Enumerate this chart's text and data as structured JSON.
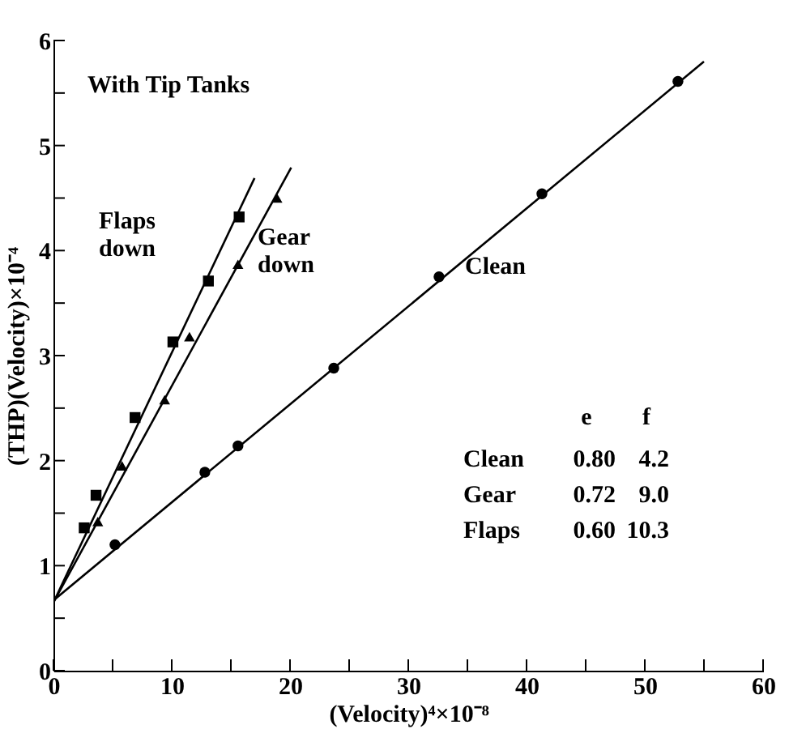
{
  "chart_data": {
    "type": "scatter",
    "xlabel": "(Velocity)⁴×10⁻⁸",
    "ylabel": "(THP)(Velocity)×10⁻⁴",
    "xlim": [
      0,
      60
    ],
    "ylim": [
      0,
      6
    ],
    "xticks": [
      0,
      {
        "value": 5,
        "label": null
      },
      10,
      {
        "value": 15,
        "label": null
      },
      20,
      {
        "value": 25,
        "label": null
      },
      30,
      {
        "value": 35,
        "label": null
      },
      40,
      {
        "value": 45,
        "label": null
      },
      50,
      {
        "value": 55,
        "label": null
      },
      60
    ],
    "yticks": [
      0,
      {
        "value": 0.5,
        "label": null
      },
      1,
      {
        "value": 1.5,
        "label": null
      },
      2,
      {
        "value": 2.5,
        "label": null
      },
      3,
      {
        "value": 3.5,
        "label": null
      },
      4,
      {
        "value": 4.5,
        "label": null
      },
      5,
      {
        "value": 5.5,
        "label": null
      },
      6
    ],
    "grid": false,
    "series": [
      {
        "name": "Clean",
        "color": "#000000",
        "marker": "circle",
        "x": [
          5.2,
          12.8,
          15.6,
          23.7,
          32.6,
          41.3,
          52.8
        ],
        "values": [
          1.2,
          1.89,
          2.14,
          2.88,
          3.75,
          4.54,
          5.61
        ]
      },
      {
        "name": "Gear down",
        "color": "#000000",
        "marker": "triangle",
        "x": [
          3.75,
          5.8,
          9.4,
          11.5,
          15.6,
          18.9
        ],
        "values": [
          1.42,
          1.95,
          2.58,
          3.18,
          3.87,
          4.5
        ]
      },
      {
        "name": "Flaps down",
        "color": "#000000",
        "marker": "square",
        "x": [
          2.6,
          3.6,
          6.9,
          10.1,
          13.1,
          15.7
        ],
        "values": [
          1.36,
          1.67,
          2.41,
          3.13,
          3.71,
          4.32
        ]
      },
      {
        "type": "line",
        "color": "#000000",
        "marker": "none",
        "x": [
          0,
          55
        ],
        "values": [
          0.67,
          5.8
        ]
      },
      {
        "type": "line",
        "color": "#000000",
        "marker": "none",
        "x": [
          0,
          20.1
        ],
        "values": [
          0.65,
          4.79
        ]
      },
      {
        "type": "line",
        "color": "#000000",
        "marker": "none",
        "x": [
          0,
          17.0
        ],
        "values": [
          0.65,
          4.69
        ]
      }
    ],
    "annotations": [
      "With Tip Tanks",
      "e",
      "f",
      "Clean",
      "0.80",
      "4.2",
      "Gear",
      "0.72",
      "9.0",
      "Flaps",
      "0.60",
      "10.3"
    ]
  }
}
